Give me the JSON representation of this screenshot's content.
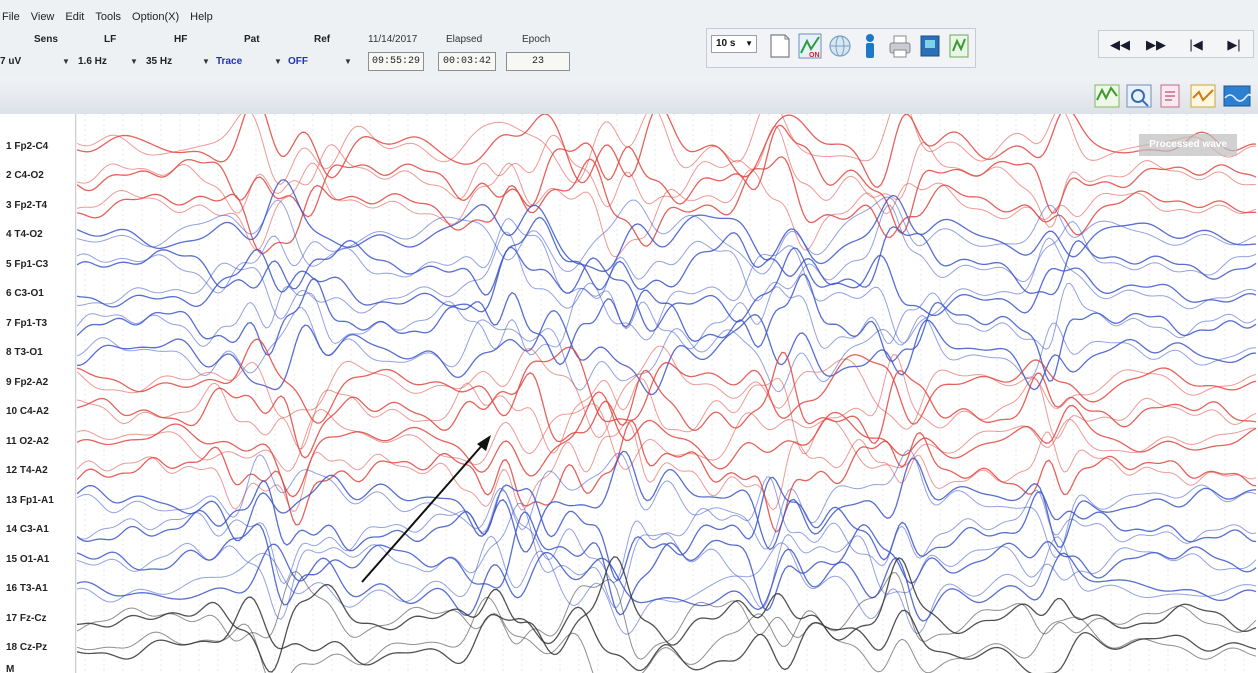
{
  "menu": [
    "File",
    "View",
    "Edit",
    "Tools",
    "Option(X)",
    "Help"
  ],
  "settings": {
    "sens": {
      "label": "Sens",
      "value": "7 uV"
    },
    "lf": {
      "label": "LF",
      "value": "1.6 Hz"
    },
    "hf": {
      "label": "HF",
      "value": "35 Hz"
    },
    "pat": {
      "label": "Pat",
      "value": "Trace"
    },
    "ref": {
      "label": "Ref",
      "value": "OFF"
    },
    "date": "11/14/2017",
    "time": "09:55:29",
    "elapsed": {
      "label": "Elapsed",
      "value": "00:03:42"
    },
    "epoch": {
      "label": "Epoch",
      "value": "23"
    }
  },
  "toolbar": {
    "speed": "10 s",
    "icons": [
      "blank-page-icon",
      "montage-on-icon",
      "globe-icon",
      "person-icon",
      "printer-icon",
      "book-icon",
      "wave-export-icon"
    ],
    "montage_badge": "ON"
  },
  "nav": {
    "rewind": "◀◀",
    "forward": "▶▶",
    "first": "|◀",
    "last": "▶|"
  },
  "toolbar2": {
    "icons": [
      "wave-tool-1-icon",
      "wave-tool-2-icon",
      "wave-tool-3-icon",
      "wave-tool-4-icon",
      "wave-tool-5-icon"
    ]
  },
  "overlay_badge": "Processed wave",
  "channels": [
    "1 Fp2-C4",
    "2 C4-O2",
    "3 Fp2-T4",
    "4 T4-O2",
    "5 Fp1-C3",
    "6 C3-O1",
    "7 Fp1-T3",
    "8 T3-O1",
    "9 Fp2-A2",
    "10 C4-A2",
    "11 O2-A2",
    "12 T4-A2",
    "13 Fp1-A1",
    "14 C3-A1",
    "15 O1-A1",
    "16 T3-A1",
    "17 Fz-Cz",
    "18 Cz-Pz",
    "M"
  ],
  "colors": {
    "red_trace": "#e0473f",
    "blue_trace": "#3b55c9",
    "black_trace": "#333333",
    "arrow": "#111111"
  }
}
